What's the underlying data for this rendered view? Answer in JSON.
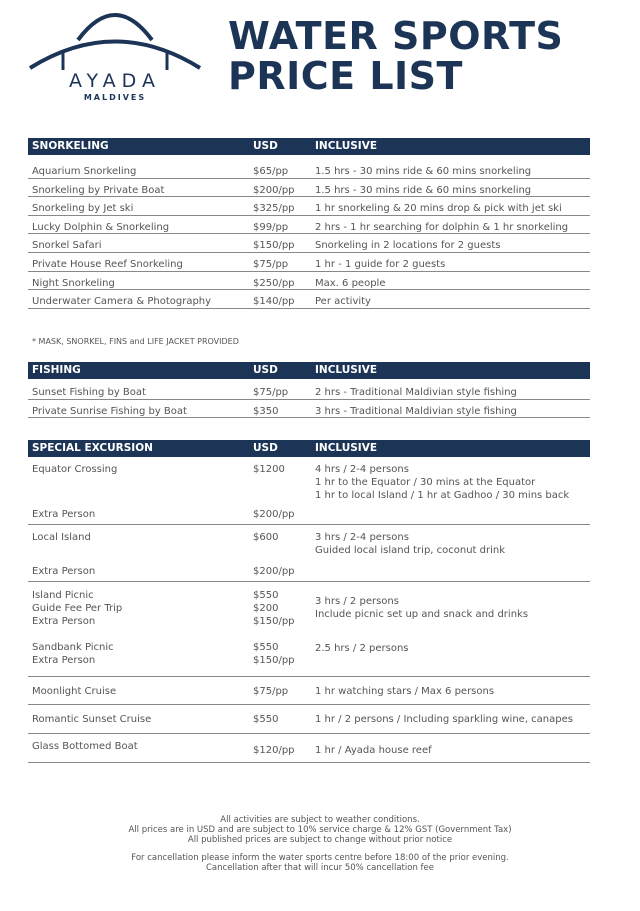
{
  "brand": {
    "name": "AYADA",
    "sub": "MALDIVES",
    "color": "#1c3557"
  },
  "title": {
    "line1": "WATER SPORTS",
    "line2": "PRICE LIST"
  },
  "snorkeling": {
    "headers": [
      "SNORKELING",
      "USD",
      "INCLUSIVE"
    ],
    "rows": [
      [
        "Aquarium Snorkeling",
        "$65/pp",
        "1.5 hrs - 30 mins ride & 60 mins snorkeling"
      ],
      [
        "Snorkeling by Private Boat",
        "$200/pp",
        "1.5 hrs - 30 mins ride & 60 mins snorkeling"
      ],
      [
        "Snorkeling by Jet ski",
        "$325/pp",
        "1 hr snorkeling & 20 mins drop & pick with jet ski"
      ],
      [
        "Lucky Dolphin & Snorkeling",
        "$99/pp",
        "2 hrs - 1 hr searching for dolphin & 1 hr snorkeling"
      ],
      [
        "Snorkel Safari",
        "$150/pp",
        "Snorkeling in 2 locations for 2 guests"
      ],
      [
        "Private House Reef Snorkeling",
        "$75/pp",
        "1 hr - 1 guide for 2 guests"
      ],
      [
        "Night Snorkeling",
        "$250/pp",
        "Max. 6 people"
      ],
      [
        "Underwater Camera & Photography",
        "$140/pp",
        "Per activity"
      ]
    ],
    "note": "* MASK, SNORKEL, FINS and LIFE JACKET PROVIDED"
  },
  "fishing": {
    "headers": [
      "FISHING",
      "USD",
      "INCLUSIVE"
    ],
    "rows": [
      [
        "Sunset Fishing by Boat",
        "$75/pp",
        "2 hrs - Traditional Maldivian style fishing"
      ],
      [
        "Private Sunrise Fishing by Boat",
        "$350",
        "3 hrs - Traditional Maldivian style fishing"
      ]
    ]
  },
  "special": {
    "headers": [
      "SPECIAL EXCURSION",
      "USD",
      "INCLUSIVE"
    ],
    "equator": {
      "name": "Equator Crossing",
      "price": "$1200",
      "incl": [
        "4 hrs / 2-4 persons",
        "1 hr to the Equator / 30 mins at the Equator",
        "1 hr to local Island / 1 hr at Gadhoo / 30 mins back"
      ],
      "extra": "Extra Person",
      "extra_price": "$200/pp"
    },
    "local": {
      "name": "Local Island",
      "price": "$600",
      "incl": [
        "3 hrs / 2-4 persons",
        "Guided local island trip, coconut drink"
      ],
      "extra": "Extra Person",
      "extra_price": "$200/pp"
    },
    "picnic": {
      "names": [
        "Island Picnic",
        "Guide Fee Per Trip",
        "Extra Person"
      ],
      "prices": [
        "$550",
        "$200",
        "$150/pp"
      ],
      "incl": [
        "3 hrs / 2 persons",
        "Include picnic set up and snack and drinks"
      ]
    },
    "sandbank": {
      "names": [
        "Sandbank Picnic",
        "Extra Person"
      ],
      "prices": [
        "$550",
        "$150/pp"
      ],
      "incl": "2.5 hrs / 2 persons"
    },
    "moonlight": [
      "Moonlight Cruise",
      "$75/pp",
      "1 hr watching stars / Max 6 persons"
    ],
    "romantic": [
      "Romantic Sunset Cruise",
      "$550",
      "1 hr / 2 persons / Including sparkling wine, canapes"
    ],
    "glass": [
      "Glass Bottomed Boat",
      "$120/pp",
      "1 hr / Ayada house reef"
    ]
  },
  "footer": {
    "lines": [
      "All activities are subject to weather conditions.",
      "All prices are in USD and are subject to 10% service charge & 12% GST (Government Tax)",
      "All published prices are subject to change without prior notice"
    ],
    "cancel": [
      "For cancellation please inform the water sports centre before 18:00 of the prior evening.",
      "Cancellation after that will incur 50% cancellation fee"
    ]
  }
}
